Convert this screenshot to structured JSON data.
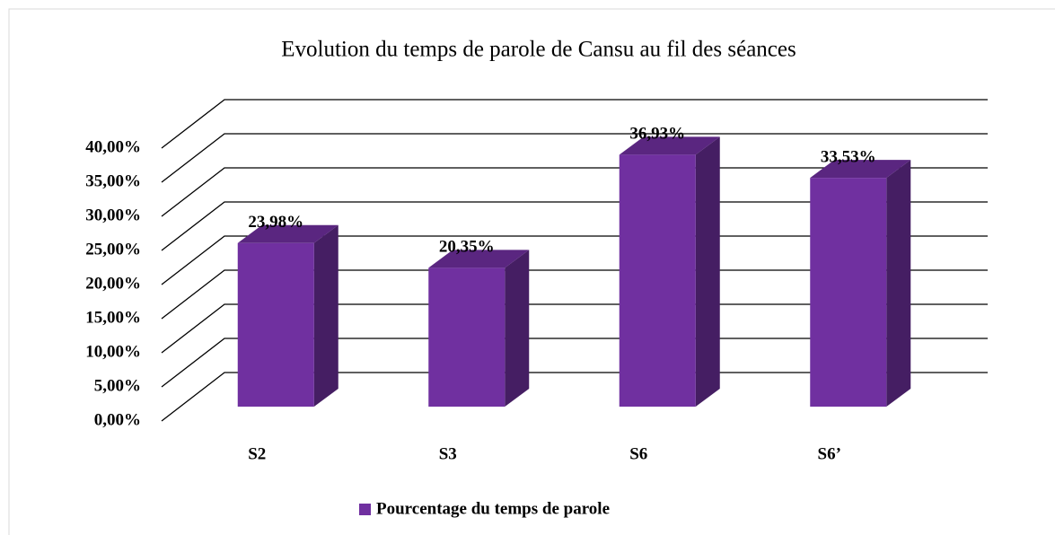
{
  "chart_data": {
    "type": "bar3d",
    "title": "Evolution du temps de parole de Cansu au fil des séances",
    "categories": [
      "S2",
      "S3",
      "S6",
      "S6’"
    ],
    "series": [
      {
        "name": "Pourcentage du temps de parole",
        "color": "#7030a0",
        "values": [
          23.98,
          20.35,
          36.93,
          33.53
        ],
        "value_labels": [
          "23,98%",
          "20,35%",
          "36,93%",
          "33,53%"
        ]
      }
    ],
    "ylim": [
      0,
      40
    ],
    "yticks": [
      {
        "value": 0,
        "label": "0,00%"
      },
      {
        "value": 5,
        "label": "5,00%"
      },
      {
        "value": 10,
        "label": "10,00%"
      },
      {
        "value": 15,
        "label": "15,00%"
      },
      {
        "value": 20,
        "label": "20,00%"
      },
      {
        "value": 25,
        "label": "25,00%"
      },
      {
        "value": 30,
        "label": "30,00%"
      },
      {
        "value": 35,
        "label": "35,00%"
      },
      {
        "value": 40,
        "label": "40,00%"
      }
    ],
    "grid": true,
    "legend": "bottom"
  }
}
